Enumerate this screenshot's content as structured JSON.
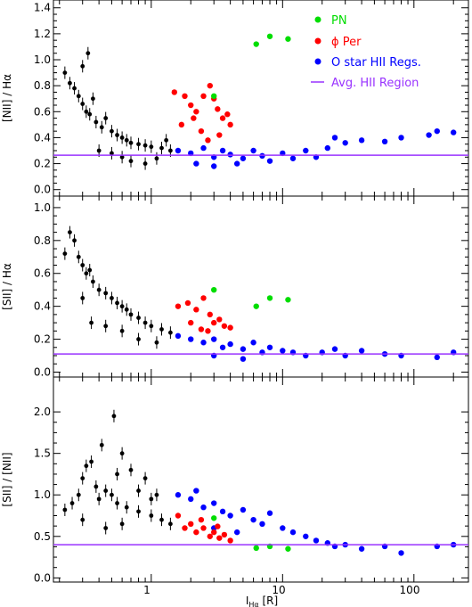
{
  "colors": {
    "hii": "#000000",
    "oStar": "#0000ff",
    "phiPer": "#ff0000",
    "pn": "#00dd00",
    "avgLine": "#9933ff",
    "frame": "#000000"
  },
  "xaxis": {
    "label": "I_Hα [R]",
    "label_main": "I",
    "label_sub": "Hα",
    "label_unit": " [R]",
    "scale": "log",
    "range": [
      0.18,
      260
    ],
    "tick_labels": [
      "1",
      "10",
      "100"
    ],
    "tick_values": [
      1,
      10,
      100
    ]
  },
  "legend": {
    "placement": "top-right",
    "items": [
      {
        "key": "pn",
        "label": "PN",
        "marker": "dot"
      },
      {
        "key": "phiPer",
        "label": "ϕ Per",
        "marker": "dot"
      },
      {
        "key": "oStar",
        "label": "O star HII Regs.",
        "marker": "dot"
      },
      {
        "key": "avgLine",
        "label": "Avg. HII Region",
        "marker": "line"
      }
    ]
  },
  "chart_data": [
    {
      "type": "scatter",
      "ylabel": "[NII] / Hα",
      "ylim": [
        -0.05,
        1.46
      ],
      "yticks": [
        "0.0",
        "0.2",
        "0.4",
        "0.6",
        "0.8",
        "1.0",
        "1.2",
        "1.4"
      ],
      "ytick_values": [
        0.0,
        0.2,
        0.4,
        0.6,
        0.8,
        1.0,
        1.2,
        1.4
      ],
      "avg_line": 0.265,
      "series": [
        {
          "key": "hii",
          "points": [
            [
              0.22,
              0.9
            ],
            [
              0.24,
              0.82
            ],
            [
              0.26,
              0.78
            ],
            [
              0.28,
              0.72
            ],
            [
              0.3,
              0.66
            ],
            [
              0.32,
              0.6
            ],
            [
              0.34,
              0.58
            ],
            [
              0.36,
              0.7
            ],
            [
              0.38,
              0.52
            ],
            [
              0.42,
              0.48
            ],
            [
              0.45,
              0.55
            ],
            [
              0.5,
              0.45
            ],
            [
              0.55,
              0.42
            ],
            [
              0.6,
              0.4
            ],
            [
              0.65,
              0.38
            ],
            [
              0.7,
              0.36
            ],
            [
              0.8,
              0.35
            ],
            [
              0.9,
              0.34
            ],
            [
              1.0,
              0.33
            ],
            [
              1.2,
              0.32
            ],
            [
              1.4,
              0.3
            ],
            [
              0.3,
              0.95
            ],
            [
              0.33,
              1.05
            ],
            [
              0.4,
              0.3
            ],
            [
              0.5,
              0.28
            ],
            [
              0.6,
              0.25
            ],
            [
              0.7,
              0.22
            ],
            [
              0.9,
              0.2
            ],
            [
              1.1,
              0.24
            ],
            [
              1.3,
              0.38
            ]
          ]
        },
        {
          "key": "phiPer",
          "points": [
            [
              1.5,
              0.75
            ],
            [
              1.8,
              0.72
            ],
            [
              2.0,
              0.65
            ],
            [
              2.2,
              0.6
            ],
            [
              2.5,
              0.72
            ],
            [
              2.8,
              0.8
            ],
            [
              3.0,
              0.7
            ],
            [
              3.2,
              0.62
            ],
            [
              3.5,
              0.55
            ],
            [
              3.8,
              0.58
            ],
            [
              4.0,
              0.5
            ],
            [
              2.4,
              0.45
            ],
            [
              2.7,
              0.38
            ],
            [
              3.3,
              0.42
            ],
            [
              2.1,
              0.55
            ],
            [
              1.7,
              0.5
            ]
          ]
        },
        {
          "key": "oStar",
          "points": [
            [
              1.6,
              0.3
            ],
            [
              2.0,
              0.28
            ],
            [
              2.5,
              0.32
            ],
            [
              3.0,
              0.25
            ],
            [
              3.5,
              0.3
            ],
            [
              4.0,
              0.27
            ],
            [
              5.0,
              0.24
            ],
            [
              6.0,
              0.3
            ],
            [
              7.0,
              0.26
            ],
            [
              8.0,
              0.22
            ],
            [
              10.0,
              0.28
            ],
            [
              12.0,
              0.24
            ],
            [
              15.0,
              0.3
            ],
            [
              18.0,
              0.25
            ],
            [
              22.0,
              0.32
            ],
            [
              25.0,
              0.4
            ],
            [
              30.0,
              0.36
            ],
            [
              40.0,
              0.38
            ],
            [
              60.0,
              0.37
            ],
            [
              80.0,
              0.4
            ],
            [
              130.0,
              0.42
            ],
            [
              150.0,
              0.45
            ],
            [
              200.0,
              0.44
            ],
            [
              2.2,
              0.2
            ],
            [
              3.0,
              0.18
            ],
            [
              4.5,
              0.2
            ]
          ]
        },
        {
          "key": "pn",
          "points": [
            [
              3.0,
              0.72
            ],
            [
              6.3,
              1.12
            ],
            [
              8.0,
              1.18
            ],
            [
              11.0,
              1.16
            ]
          ]
        }
      ]
    },
    {
      "type": "scatter",
      "ylabel": "[SII] / Hα",
      "ylim": [
        -0.03,
        1.07
      ],
      "yticks": [
        "0.0",
        "0.2",
        "0.4",
        "0.6",
        "0.8",
        "1.0"
      ],
      "ytick_values": [
        0.0,
        0.2,
        0.4,
        0.6,
        0.8,
        1.0
      ],
      "avg_line": 0.11,
      "series": [
        {
          "key": "hii",
          "points": [
            [
              0.22,
              0.72
            ],
            [
              0.24,
              0.85
            ],
            [
              0.26,
              0.8
            ],
            [
              0.28,
              0.7
            ],
            [
              0.3,
              0.65
            ],
            [
              0.32,
              0.6
            ],
            [
              0.34,
              0.62
            ],
            [
              0.36,
              0.55
            ],
            [
              0.4,
              0.5
            ],
            [
              0.45,
              0.48
            ],
            [
              0.5,
              0.45
            ],
            [
              0.55,
              0.42
            ],
            [
              0.6,
              0.4
            ],
            [
              0.65,
              0.38
            ],
            [
              0.7,
              0.35
            ],
            [
              0.8,
              0.33
            ],
            [
              0.9,
              0.3
            ],
            [
              1.0,
              0.28
            ],
            [
              1.2,
              0.26
            ],
            [
              1.4,
              0.24
            ],
            [
              0.35,
              0.3
            ],
            [
              0.45,
              0.28
            ],
            [
              0.6,
              0.25
            ],
            [
              0.8,
              0.2
            ],
            [
              1.1,
              0.18
            ],
            [
              0.3,
              0.45
            ]
          ]
        },
        {
          "key": "phiPer",
          "points": [
            [
              1.6,
              0.4
            ],
            [
              1.9,
              0.42
            ],
            [
              2.2,
              0.38
            ],
            [
              2.5,
              0.45
            ],
            [
              2.8,
              0.35
            ],
            [
              3.0,
              0.3
            ],
            [
              3.3,
              0.32
            ],
            [
              3.6,
              0.28
            ],
            [
              4.0,
              0.27
            ],
            [
              2.4,
              0.26
            ],
            [
              2.0,
              0.3
            ],
            [
              2.7,
              0.25
            ]
          ]
        },
        {
          "key": "oStar",
          "points": [
            [
              1.6,
              0.22
            ],
            [
              2.0,
              0.2
            ],
            [
              2.5,
              0.18
            ],
            [
              3.0,
              0.2
            ],
            [
              3.5,
              0.15
            ],
            [
              4.0,
              0.17
            ],
            [
              5.0,
              0.14
            ],
            [
              6.0,
              0.18
            ],
            [
              7.0,
              0.12
            ],
            [
              8.0,
              0.15
            ],
            [
              10.0,
              0.13
            ],
            [
              12.0,
              0.12
            ],
            [
              15.0,
              0.1
            ],
            [
              20.0,
              0.12
            ],
            [
              25.0,
              0.14
            ],
            [
              30.0,
              0.1
            ],
            [
              40.0,
              0.13
            ],
            [
              60.0,
              0.11
            ],
            [
              80.0,
              0.1
            ],
            [
              150.0,
              0.09
            ],
            [
              200.0,
              0.12
            ],
            [
              3.0,
              0.1
            ],
            [
              5.0,
              0.08
            ]
          ]
        },
        {
          "key": "pn",
          "points": [
            [
              3.0,
              0.5
            ],
            [
              6.3,
              0.4
            ],
            [
              8.0,
              0.45
            ],
            [
              11.0,
              0.44
            ]
          ]
        }
      ]
    },
    {
      "type": "scatter",
      "ylabel": "[SII] / [NII]",
      "ylim": [
        -0.05,
        2.42
      ],
      "yticks": [
        "0.0",
        "0.5",
        "1.0",
        "1.5",
        "2.0"
      ],
      "ytick_values": [
        0.0,
        0.5,
        1.0,
        1.5,
        2.0
      ],
      "avg_line": 0.4,
      "series": [
        {
          "key": "hii",
          "points": [
            [
              0.22,
              0.82
            ],
            [
              0.25,
              0.9
            ],
            [
              0.28,
              1.0
            ],
            [
              0.3,
              1.2
            ],
            [
              0.32,
              1.35
            ],
            [
              0.35,
              1.4
            ],
            [
              0.38,
              1.1
            ],
            [
              0.4,
              0.95
            ],
            [
              0.42,
              1.6
            ],
            [
              0.45,
              1.05
            ],
            [
              0.5,
              1.0
            ],
            [
              0.52,
              1.95
            ],
            [
              0.55,
              0.9
            ],
            [
              0.6,
              1.5
            ],
            [
              0.65,
              0.85
            ],
            [
              0.7,
              1.3
            ],
            [
              0.8,
              0.8
            ],
            [
              0.9,
              1.2
            ],
            [
              1.0,
              0.75
            ],
            [
              1.1,
              1.0
            ],
            [
              1.2,
              0.7
            ],
            [
              1.4,
              0.65
            ],
            [
              0.3,
              0.7
            ],
            [
              0.45,
              0.6
            ],
            [
              0.6,
              0.65
            ],
            [
              0.8,
              1.05
            ],
            [
              1.0,
              0.95
            ],
            [
              0.55,
              1.25
            ]
          ]
        },
        {
          "key": "oStar",
          "points": [
            [
              1.6,
              1.0
            ],
            [
              2.0,
              0.95
            ],
            [
              2.5,
              0.85
            ],
            [
              3.0,
              0.9
            ],
            [
              3.5,
              0.8
            ],
            [
              4.0,
              0.75
            ],
            [
              5.0,
              0.82
            ],
            [
              6.0,
              0.7
            ],
            [
              7.0,
              0.65
            ],
            [
              8.0,
              0.78
            ],
            [
              10.0,
              0.6
            ],
            [
              12.0,
              0.55
            ],
            [
              15.0,
              0.5
            ],
            [
              18.0,
              0.45
            ],
            [
              22.0,
              0.42
            ],
            [
              25.0,
              0.38
            ],
            [
              30.0,
              0.4
            ],
            [
              40.0,
              0.35
            ],
            [
              60.0,
              0.38
            ],
            [
              80.0,
              0.3
            ],
            [
              150.0,
              0.38
            ],
            [
              200.0,
              0.4
            ],
            [
              3.0,
              0.6
            ],
            [
              4.5,
              0.55
            ],
            [
              2.2,
              1.05
            ]
          ]
        },
        {
          "key": "phiPer",
          "points": [
            [
              1.6,
              0.75
            ],
            [
              1.8,
              0.6
            ],
            [
              2.0,
              0.65
            ],
            [
              2.2,
              0.55
            ],
            [
              2.5,
              0.6
            ],
            [
              2.8,
              0.5
            ],
            [
              3.0,
              0.55
            ],
            [
              3.3,
              0.48
            ],
            [
              3.6,
              0.52
            ],
            [
              4.0,
              0.45
            ],
            [
              2.4,
              0.7
            ],
            [
              3.2,
              0.62
            ]
          ]
        },
        {
          "key": "pn",
          "points": [
            [
              3.0,
              0.72
            ],
            [
              6.3,
              0.36
            ],
            [
              8.0,
              0.38
            ],
            [
              11.0,
              0.35
            ]
          ]
        }
      ]
    }
  ]
}
